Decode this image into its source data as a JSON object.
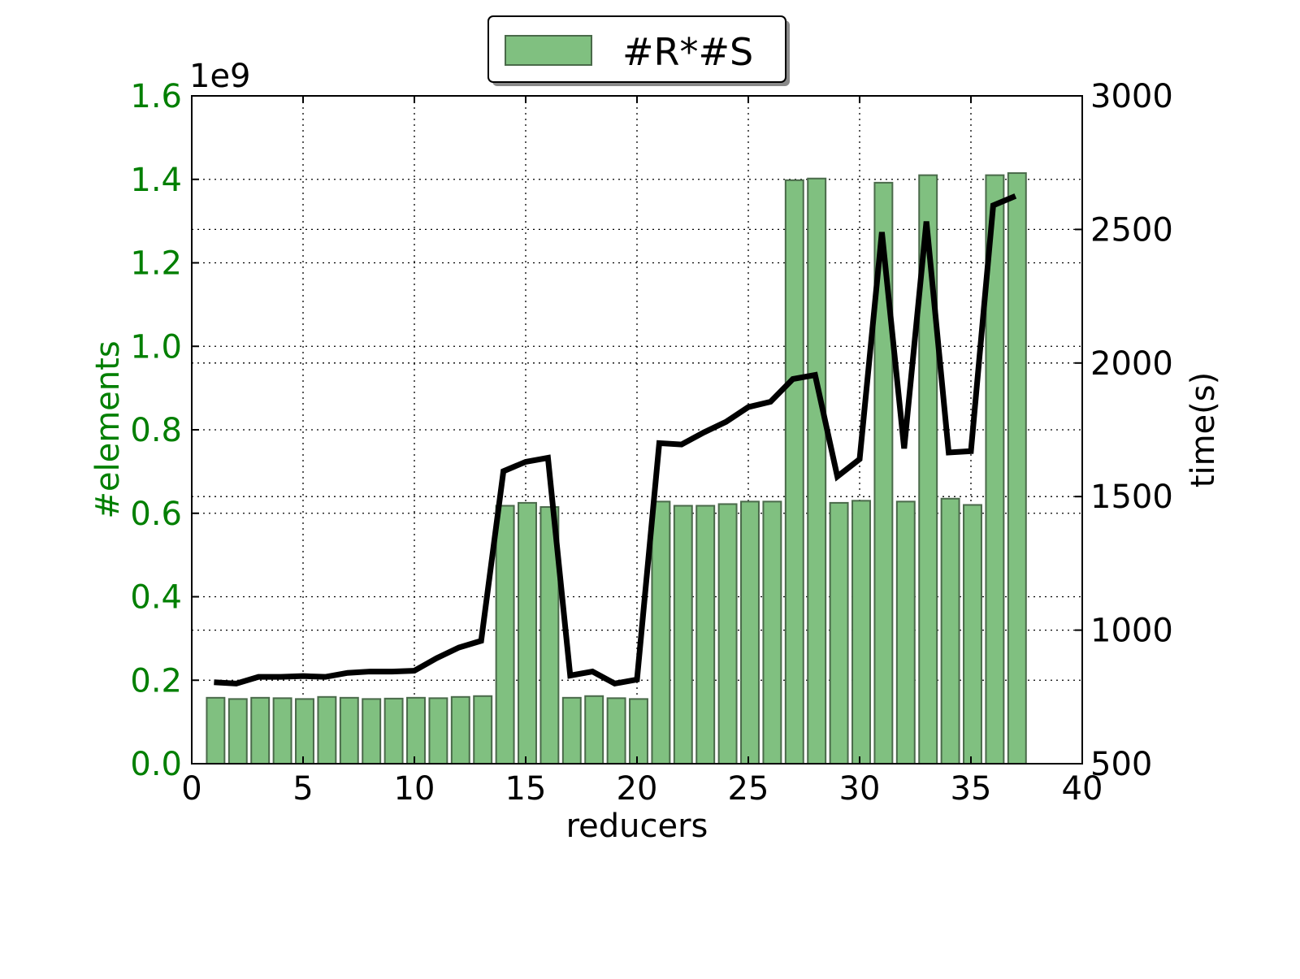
{
  "chart_data": {
    "type": "bar",
    "title": "",
    "xlabel": "reducers",
    "ylabel_left": "#elements",
    "ylabel_right": "time(s)",
    "left_axis_offset_label": "1e9",
    "xlim": [
      0,
      40
    ],
    "ylim_left": [
      0.0,
      1.6
    ],
    "ylim_right": [
      500,
      3000
    ],
    "x_ticks": [
      0,
      5,
      10,
      15,
      20,
      25,
      30,
      35,
      40
    ],
    "y_ticks_left": [
      "0.0",
      "0.2",
      "0.4",
      "0.6",
      "0.8",
      "1.0",
      "1.2",
      "1.4",
      "1.6"
    ],
    "y_ticks_right": [
      "500",
      "1000",
      "1500",
      "2000",
      "2500",
      "3000"
    ],
    "grid": true,
    "legend_position": "top-center",
    "colors": {
      "bars": "#80c080",
      "bar_edge": "#4a6a4a",
      "line": "#000000",
      "left_axis_text": "#007f00"
    },
    "series": [
      {
        "name": "#R*#S",
        "type": "bar",
        "axis": "left",
        "x": [
          1,
          2,
          3,
          4,
          5,
          6,
          7,
          8,
          9,
          10,
          11,
          12,
          13,
          14,
          15,
          16,
          17,
          18,
          19,
          20,
          21,
          22,
          23,
          24,
          25,
          26,
          27,
          28,
          29,
          30,
          31,
          32,
          33,
          34,
          35,
          36,
          37
        ],
        "values": [
          0.158,
          0.155,
          0.158,
          0.157,
          0.155,
          0.16,
          0.158,
          0.155,
          0.156,
          0.158,
          0.157,
          0.16,
          0.162,
          0.618,
          0.625,
          0.615,
          0.158,
          0.162,
          0.157,
          0.155,
          0.628,
          0.618,
          0.618,
          0.622,
          0.628,
          0.628,
          1.398,
          1.402,
          0.625,
          0.63,
          1.392,
          0.628,
          1.41,
          0.635,
          0.62,
          1.41,
          1.415
        ]
      },
      {
        "type": "line",
        "axis": "right",
        "x": [
          1,
          2,
          3,
          4,
          5,
          6,
          7,
          8,
          9,
          10,
          11,
          12,
          13,
          14,
          15,
          16,
          17,
          18,
          19,
          20,
          21,
          22,
          23,
          24,
          25,
          26,
          27,
          28,
          29,
          30,
          31,
          32,
          33,
          34,
          35,
          36,
          37
        ],
        "values": [
          805,
          800,
          825,
          825,
          828,
          825,
          840,
          845,
          845,
          848,
          895,
          935,
          960,
          1595,
          1630,
          1645,
          830,
          845,
          800,
          815,
          1700,
          1695,
          1740,
          1780,
          1835,
          1855,
          1940,
          1955,
          1575,
          1640,
          2490,
          1680,
          2530,
          1665,
          1670,
          2590,
          2625
        ]
      }
    ]
  }
}
